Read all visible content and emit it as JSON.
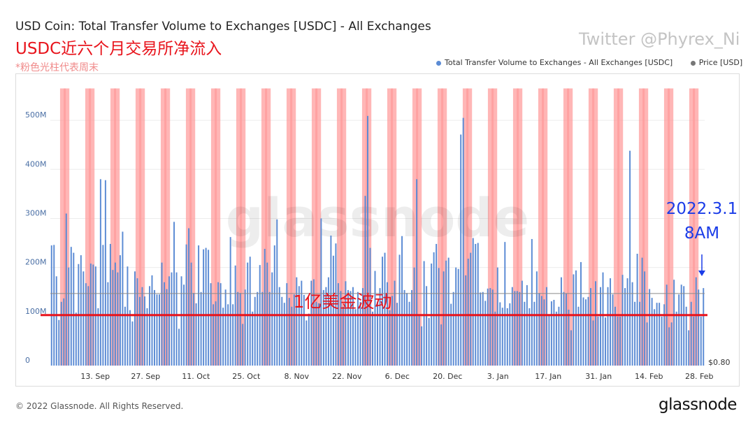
{
  "title": "USD Coin: Total Transfer Volume to Exchanges [USDC] - All Exchanges",
  "subtitle": "USDC近六个月交易所净流入",
  "note": "*粉色光柱代表周末",
  "watermark_text": "Twitter @Phyrex_Ni",
  "footer_text": "© 2022 Glassnode. All Rights Reserved.",
  "brand_text": "glassnode",
  "plot_watermark": "glassnode",
  "annotations": {
    "date_label": "2022.3.1",
    "time_label": "8AM",
    "band_label": "1亿美金波动",
    "arrow_icon": "arrow-down-icon"
  },
  "colors": {
    "bar": "#5b8bd4",
    "weekend_band": "#ff9a9a",
    "threshold_line": "#e8141c",
    "price_line": "#8a8a8a",
    "annotation_blue": "#1a3ce8",
    "subtitle_red": "#e8141c"
  },
  "chart_data": {
    "type": "bar",
    "title": "USD Coin: Total Transfer Volume to Exchanges [USDC] - All Exchanges",
    "y_unit": "M",
    "ylim": [
      0,
      570
    ],
    "y_ticks": [
      0,
      100,
      200,
      300,
      400,
      500
    ],
    "y_tick_labels": [
      "0",
      "100M",
      "200M",
      "300M",
      "400M",
      "500M"
    ],
    "x_tick_labels": [
      "13. Sep",
      "27. Sep",
      "11. Oct",
      "25. Oct",
      "8. Nov",
      "22. Nov",
      "6. Dec",
      "20. Dec",
      "3. Jan",
      "17. Jan",
      "31. Jan",
      "14. Feb",
      "28. Feb"
    ],
    "x_tick_day_index": [
      12,
      26,
      40,
      54,
      68,
      82,
      96,
      110,
      124,
      138,
      152,
      166,
      180
    ],
    "date_range": [
      "2021-09-01",
      "2022-03-01"
    ],
    "weekend_day_index": [
      3,
      4,
      10,
      11,
      17,
      18,
      24,
      25,
      31,
      32,
      38,
      39,
      45,
      46,
      52,
      53,
      59,
      60,
      66,
      67,
      73,
      74,
      80,
      81,
      87,
      88,
      94,
      95,
      101,
      102,
      108,
      109,
      115,
      116,
      122,
      123,
      129,
      130,
      136,
      137,
      143,
      144,
      150,
      151,
      157,
      158,
      164,
      165,
      171,
      172,
      178,
      179
    ],
    "weekend_band_top": 565,
    "grid": true,
    "legend_position": "top-right",
    "legend": [
      "Total Transfer Volume to Exchanges - All Exchanges [USDC]",
      "Price [USD]"
    ],
    "price_axis_label": "$0.80",
    "threshold_value": 103,
    "price_line_value": 147,
    "series": [
      {
        "name": "Total Transfer Volume to Exchanges - All Exchanges [USDC]",
        "values": [
          245,
          246,
          182,
          93,
          130,
          137,
          310,
          200,
          242,
          230,
          108,
          207,
          225,
          192,
          168,
          162,
          208,
          206,
          202,
          117,
          380,
          246,
          378,
          170,
          248,
          195,
          210,
          190,
          225,
          273,
          120,
          202,
          113,
          90,
          192,
          178,
          140,
          160,
          141,
          117,
          162,
          184,
          154,
          145,
          145,
          210,
          170,
          156,
          182,
          190,
          293,
          190,
          75,
          182,
          165,
          247,
          280,
          210,
          148,
          127,
          245,
          150,
          237,
          240,
          236,
          168,
          125,
          131,
          170,
          168,
          118,
          155,
          125,
          262,
          125,
          204,
          150,
          148,
          85,
          155,
          210,
          222,
          110,
          140,
          150,
          205,
          150,
          238,
          210,
          150,
          190,
          245,
          298,
          160,
          140,
          128,
          168,
          138,
          120,
          145,
          180,
          162,
          173,
          144,
          92,
          106,
          173,
          176,
          130,
          127,
          300,
          154,
          160,
          180,
          265,
          224,
          249,
          168,
          152,
          120,
          172,
          154,
          152,
          160,
          115,
          150,
          130,
          158,
          346,
          509,
          240,
          110,
          193,
          130,
          158,
          222,
          230,
          170,
          113,
          142,
          173,
          128,
          226,
          264,
          154,
          148,
          130,
          154,
          200,
          380,
          102,
          80,
          213,
          162,
          97,
          208,
          231,
          248,
          199,
          84,
          192,
          214,
          220,
          126,
          150,
          200,
          197,
          471,
          505,
          184,
          218,
          230,
          260,
          248,
          250,
          149,
          150,
          132,
          157,
          158,
          155,
          110,
          200,
          129,
          118,
          252,
          117,
          127,
          160,
          152,
          152,
          150,
          173,
          130,
          164,
          117,
          258,
          130,
          192,
          148,
          142,
          135,
          160,
          104,
          131,
          134,
          110,
          120,
          180,
          150,
          147,
          114,
          72,
          186,
          194,
          120,
          211,
          139,
          135,
          140,
          158,
          92,
          172,
          100,
          160,
          190,
          98,
          160,
          178,
          145,
          120,
          100,
          100,
          185,
          158,
          178,
          438,
          170,
          130,
          228,
          130,
          220,
          192,
          88,
          156,
          138,
          115,
          128,
          128,
          100,
          125,
          165,
          78,
          88,
          175,
          110,
          145,
          165,
          162,
          120,
          72,
          130,
          100,
          180,
          155,
          100,
          158
        ]
      }
    ]
  }
}
